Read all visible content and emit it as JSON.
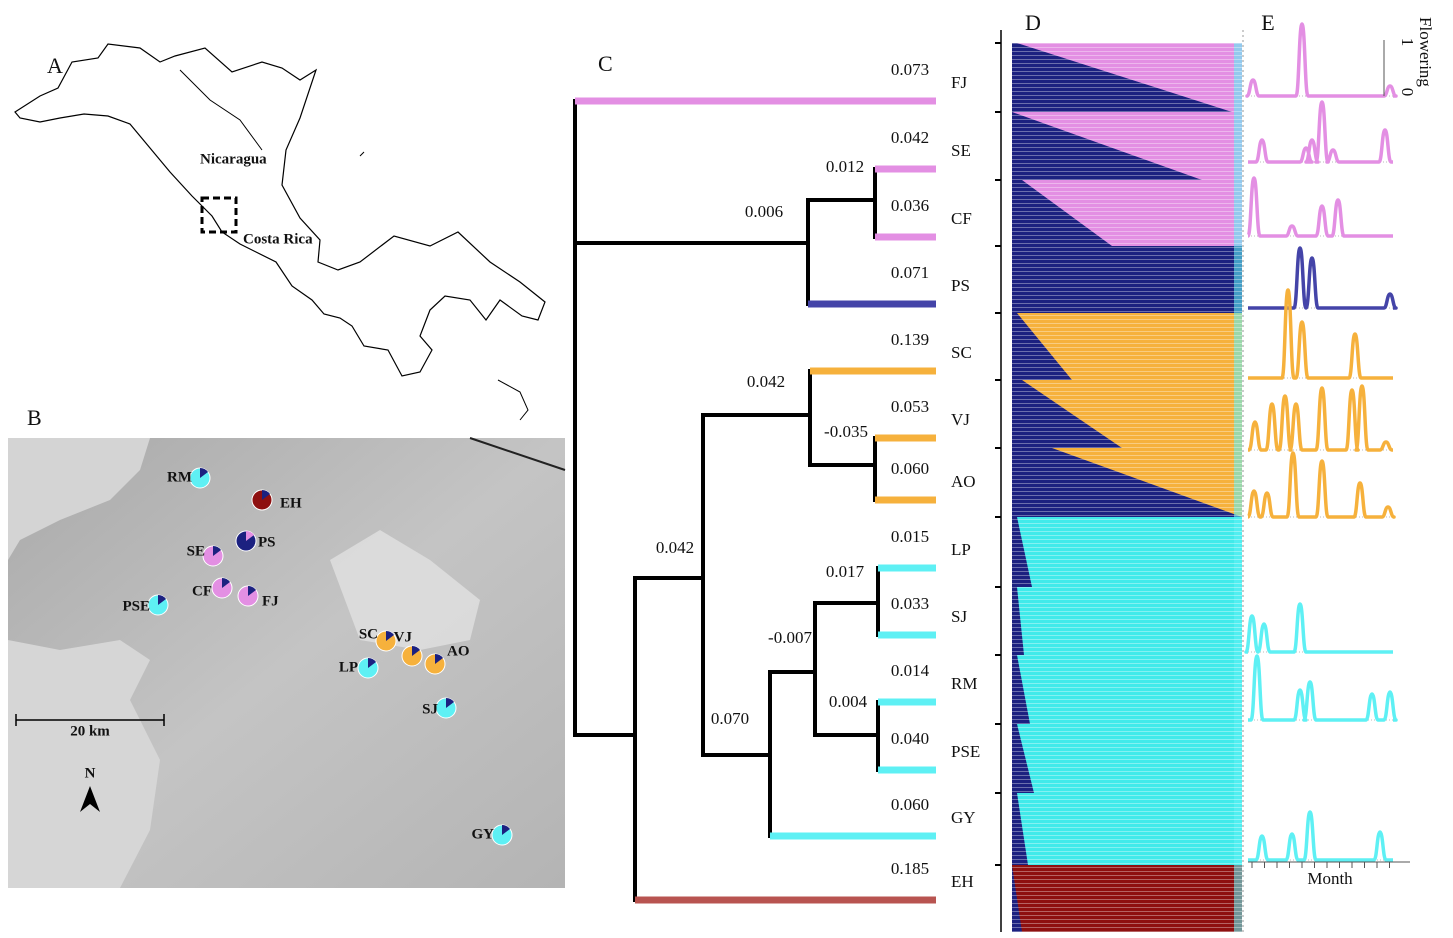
{
  "panel_a": {
    "label": "A",
    "countries": [
      "Nicaragua",
      "Costa Rica"
    ]
  },
  "panel_b": {
    "label": "B",
    "scale": "20 km",
    "north": "N",
    "sites": [
      "RM",
      "EH",
      "PS",
      "SE",
      "CF",
      "FJ",
      "PSE",
      "SC",
      "VJ",
      "AO",
      "LP",
      "SJ",
      "GY"
    ]
  },
  "panel_c": {
    "label": "C",
    "tips": [
      {
        "name": "FJ",
        "length": "0.073"
      },
      {
        "name": "SE",
        "length": "0.042"
      },
      {
        "name": "CF",
        "length": "0.036"
      },
      {
        "name": "PS",
        "length": "0.071"
      },
      {
        "name": "SC",
        "length": "0.139"
      },
      {
        "name": "VJ",
        "length": "0.053"
      },
      {
        "name": "AO",
        "length": "0.060"
      },
      {
        "name": "LP",
        "length": "0.015"
      },
      {
        "name": "SJ",
        "length": "0.033"
      },
      {
        "name": "RM",
        "length": "0.014"
      },
      {
        "name": "PSE",
        "length": "0.040"
      },
      {
        "name": "GY",
        "length": "0.060"
      },
      {
        "name": "EH",
        "length": "0.185"
      }
    ],
    "internal": [
      "0.012",
      "0.006",
      "0.042",
      "-0.035",
      "0.042",
      "0.017",
      "-0.007",
      "0.004",
      "0.070"
    ]
  },
  "panel_d": {
    "label": "D"
  },
  "panel_e": {
    "label": "E",
    "y_label": "Flowering",
    "y_ticks": [
      "1",
      "0"
    ],
    "x_label": "Month"
  }
}
